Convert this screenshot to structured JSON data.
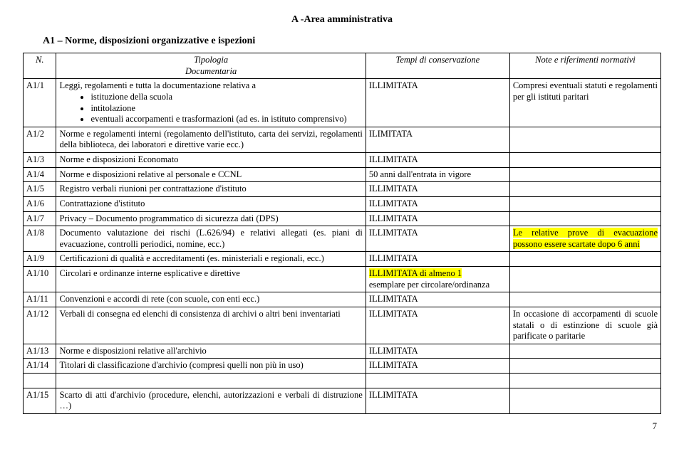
{
  "area_title": "A -Area amministrativa",
  "section_title": "A1 – Norme, disposizioni organizzative e ispezioni",
  "headers": {
    "n": "N.",
    "tipologia1": "Tipologia",
    "tipologia2": "Documentaria",
    "tempi": "Tempi di conservazione",
    "note": "Note e riferimenti normativi"
  },
  "rows": [
    {
      "n": "A1/1",
      "desc_intro": "Leggi, regolamenti e tutta la documentazione relativa a",
      "bullets": [
        "istituzione della scuola",
        "intitolazione",
        "eventuali accorpamenti e trasformazioni (ad es. in istituto comprensivo)"
      ],
      "tempi": "ILLIMITATA",
      "note": "Compresi eventuali statuti e regolamenti per gli istituti paritari"
    },
    {
      "n": "A1/2",
      "desc": "Norme e regolamenti interni (regolamento dell'istituto, carta dei servizi, regolamenti della biblioteca, dei laboratori e direttive varie ecc.)",
      "tempi": "ILIMITATA",
      "note": ""
    },
    {
      "n": "A1/3",
      "desc": "Norme e disposizioni Economato",
      "tempi": "ILLIMITATA",
      "note": ""
    },
    {
      "n": "A1/4",
      "desc": "Norme e disposizioni relative al personale e CCNL",
      "tempi": "50 anni dall'entrata in vigore",
      "note": ""
    },
    {
      "n": "A1/5",
      "desc": "Registro verbali riunioni per contrattazione d'istituto",
      "tempi": "ILLIMITATA",
      "note": ""
    },
    {
      "n": "A1/6",
      "desc": "Contrattazione d'istituto",
      "tempi": "ILLIMITATA",
      "note": ""
    },
    {
      "n": "A1/7",
      "desc": "Privacy – Documento programmatico di sicurezza dati (DPS)",
      "tempi": "ILLIMITATA",
      "note": ""
    },
    {
      "n": "A1/8",
      "desc": "Documento valutazione dei rischi (L.626/94) e relativi allegati (es. piani di evacuazione, controlli periodici, nomine, ecc.)",
      "tempi": "ILLIMITATA",
      "note_hl": "Le relative prove di evacuazione possono essere scartate dopo 6 anni"
    },
    {
      "n": "A1/9",
      "desc": "Certificazioni di qualità e accreditamenti (es. ministeriali e regionali, ecc.)",
      "tempi": "ILLIMITATA",
      "note": ""
    },
    {
      "n": "A1/10",
      "desc": "Circolari e ordinanze interne esplicative e direttive",
      "tempi_hl_pre": "ILLIMITATA",
      "tempi_hl_mid": " di almeno 1 ",
      "tempi_plain": "esemplare per circolare/ordinanza",
      "note": ""
    },
    {
      "n": "A1/11",
      "desc": "Convenzioni e accordi di rete (con scuole, con enti ecc.)",
      "tempi": "ILLIMITATA",
      "note": ""
    },
    {
      "n": "A1/12",
      "desc": "Verbali di consegna ed elenchi di consistenza di archivi o altri beni inventariati",
      "tempi": "ILLIMITATA",
      "note": "In occasione di accorpamenti di scuole statali o di estinzione di scuole già parificate o paritarie"
    },
    {
      "n": "A1/13",
      "desc": "Norme e disposizioni relative all'archivio",
      "tempi": "ILLIMITATA",
      "note": ""
    },
    {
      "n": "A1/14",
      "desc": "Titolari di classificazione d'archivio (compresi quelli non più in uso)",
      "tempi": "ILLIMITATA",
      "note": ""
    },
    {
      "n": "A1/15",
      "desc": "Scarto di atti d'archivio (procedure, elenchi, autorizzazioni e verbali di distruzione …)",
      "tempi": "ILLIMITATA",
      "note": ""
    }
  ],
  "page_number": "7",
  "colors": {
    "highlight": "#ffff00",
    "border": "#000000",
    "text": "#000000",
    "bg": "#ffffff"
  }
}
